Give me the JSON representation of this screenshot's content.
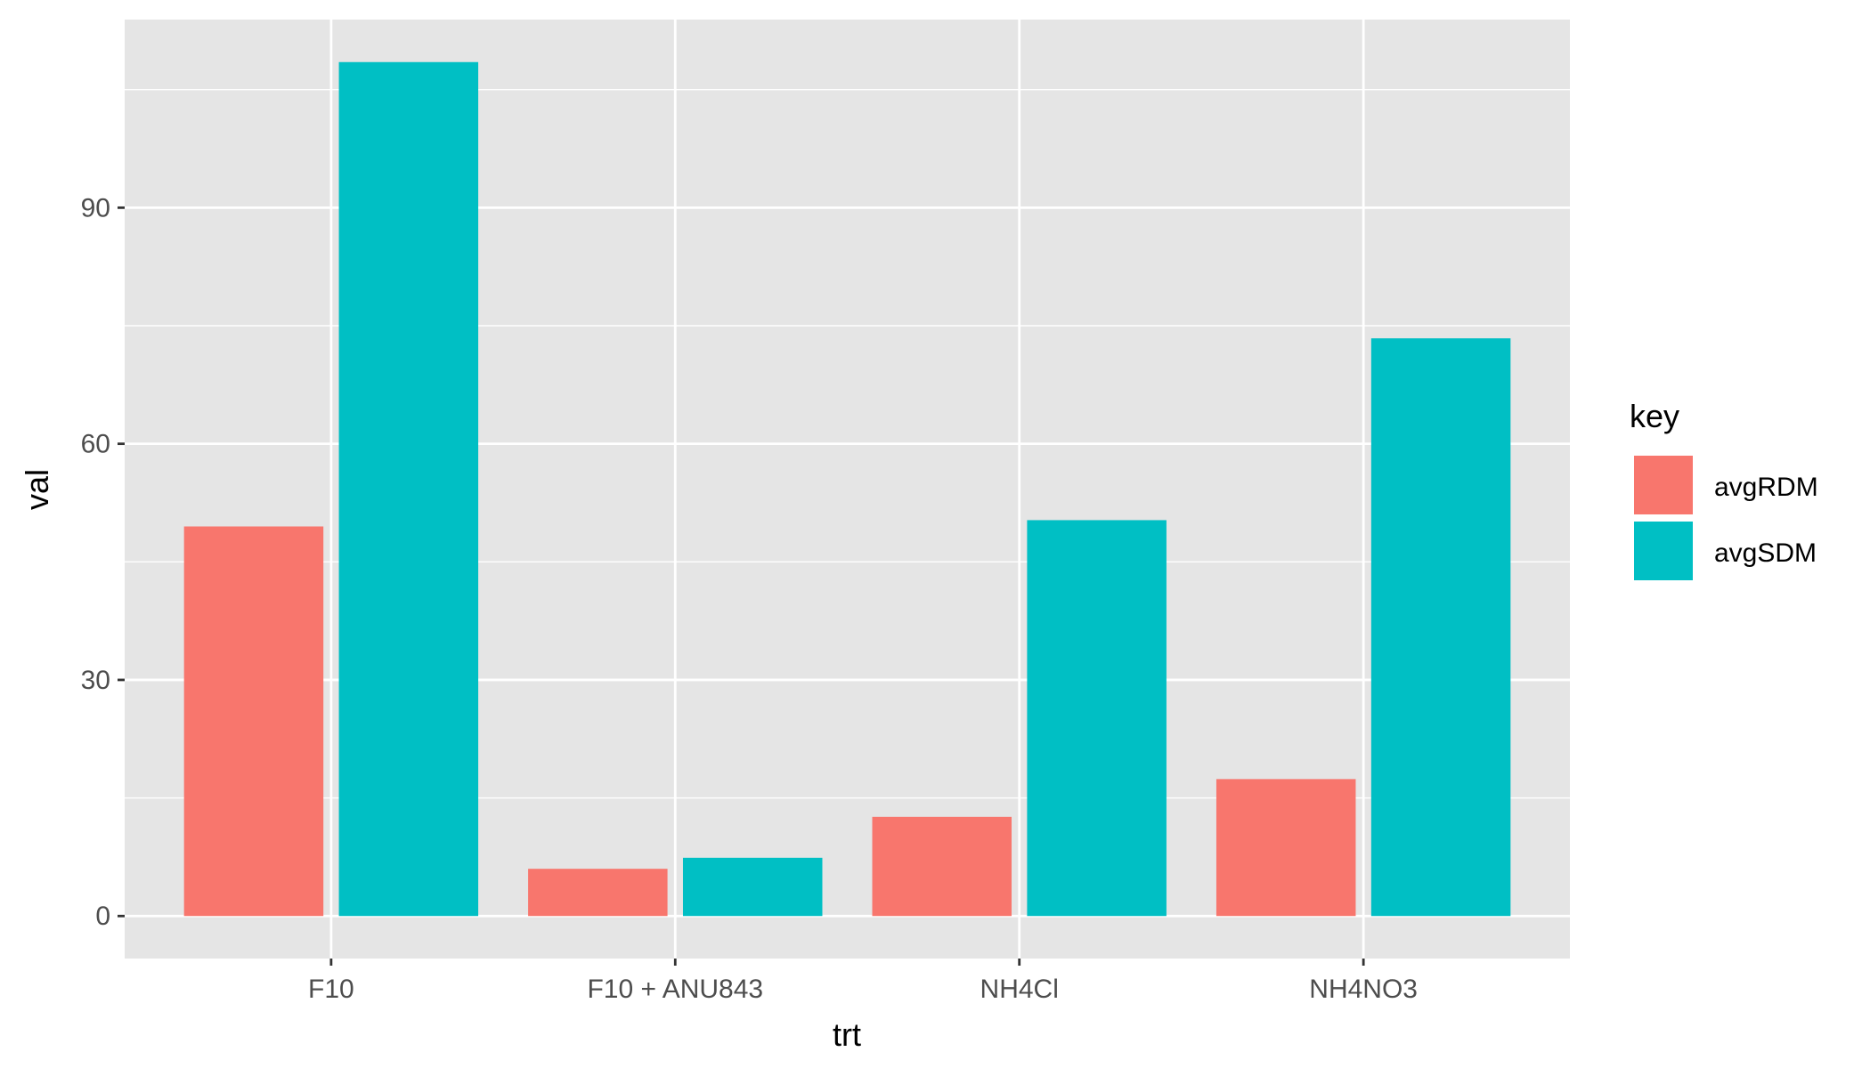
{
  "chart_data": {
    "type": "bar",
    "xlabel": "trt",
    "ylabel": "val",
    "categories": [
      "F10",
      "F10 + ANU843",
      "NH4Cl",
      "NH4NO3"
    ],
    "series": [
      {
        "name": "avgRDM",
        "color": "#F8766D",
        "values": [
          49.5,
          6.0,
          12.6,
          17.4
        ]
      },
      {
        "name": "avgSDM",
        "color": "#00BFC4",
        "values": [
          108.5,
          7.4,
          50.3,
          73.4
        ]
      }
    ],
    "yticks": [
      0,
      30,
      60,
      90
    ],
    "ylim": [
      -5.4,
      113.9
    ],
    "grid": true,
    "legend": {
      "title": "key",
      "position": "right"
    },
    "colors": {
      "panel": "#E5E5E5",
      "grid": "#FFFFFF"
    }
  }
}
